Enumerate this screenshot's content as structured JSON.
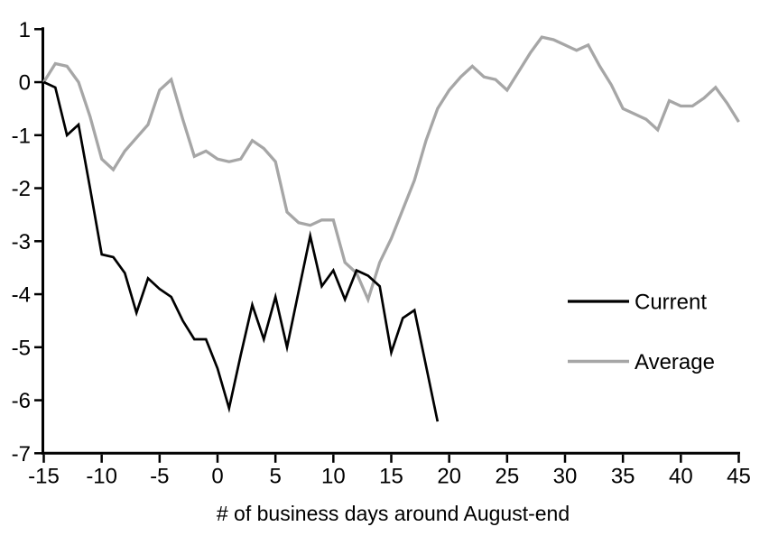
{
  "chart_data": {
    "type": "line",
    "xlabel": "# of business days around August-end",
    "ylabel": "",
    "xlim": [
      -15,
      45
    ],
    "ylim": [
      -7,
      1
    ],
    "x_ticks": [
      -15,
      -10,
      -5,
      0,
      5,
      10,
      15,
      20,
      25,
      30,
      35,
      40,
      45
    ],
    "y_ticks": [
      1,
      0,
      -1,
      -2,
      -3,
      -4,
      -5,
      -6,
      -7
    ],
    "grid": false,
    "legend_position": "right-middle",
    "axis_color": "#000000",
    "series": [
      {
        "name": "Current",
        "color": "#000000",
        "x": [
          -15,
          -14,
          -13,
          -12,
          -11,
          -10,
          -9,
          -8,
          -7,
          -6,
          -5,
          -4,
          -3,
          -2,
          -1,
          0,
          1,
          2,
          3,
          4,
          5,
          6,
          7,
          8,
          9,
          10,
          11,
          12,
          13,
          14,
          15,
          16,
          17,
          18,
          19
        ],
        "values": [
          0,
          -0.1,
          -1.0,
          -0.8,
          -2.0,
          -3.25,
          -3.3,
          -3.6,
          -4.35,
          -3.7,
          -3.9,
          -4.05,
          -4.5,
          -4.85,
          -4.85,
          -5.4,
          -6.15,
          -5.15,
          -4.2,
          -4.85,
          -4.05,
          -5.0,
          -3.95,
          -2.9,
          -3.85,
          -3.55,
          -4.1,
          -3.55,
          -3.65,
          -3.85,
          -5.1,
          -4.45,
          -4.3,
          -5.35,
          -6.4
        ]
      },
      {
        "name": "Average",
        "color": "#a6a6a6",
        "x": [
          -15,
          -14,
          -13,
          -12,
          -11,
          -10,
          -9,
          -8,
          -7,
          -6,
          -5,
          -4,
          -3,
          -2,
          -1,
          0,
          1,
          2,
          3,
          4,
          5,
          6,
          7,
          8,
          9,
          10,
          11,
          12,
          13,
          14,
          15,
          16,
          17,
          18,
          19,
          20,
          21,
          22,
          23,
          24,
          25,
          26,
          27,
          28,
          29,
          30,
          31,
          32,
          33,
          34,
          35,
          36,
          37,
          38,
          39,
          40,
          41,
          42,
          43,
          44,
          45
        ],
        "values": [
          0,
          0.35,
          0.3,
          0.0,
          -0.65,
          -1.45,
          -1.65,
          -1.3,
          -1.05,
          -0.8,
          -0.15,
          0.05,
          -0.7,
          -1.4,
          -1.3,
          -1.45,
          -1.5,
          -1.45,
          -1.1,
          -1.25,
          -1.5,
          -2.45,
          -2.65,
          -2.7,
          -2.6,
          -2.6,
          -3.4,
          -3.6,
          -4.1,
          -3.4,
          -2.95,
          -2.4,
          -1.85,
          -1.1,
          -0.5,
          -0.15,
          0.1,
          0.3,
          0.1,
          0.05,
          -0.15,
          0.2,
          0.55,
          0.85,
          0.8,
          0.7,
          0.6,
          0.7,
          0.3,
          -0.05,
          -0.5,
          -0.6,
          -0.7,
          -0.9,
          -0.35,
          -0.45,
          -0.45,
          -0.3,
          -0.1,
          -0.4,
          -0.75
        ]
      }
    ]
  }
}
